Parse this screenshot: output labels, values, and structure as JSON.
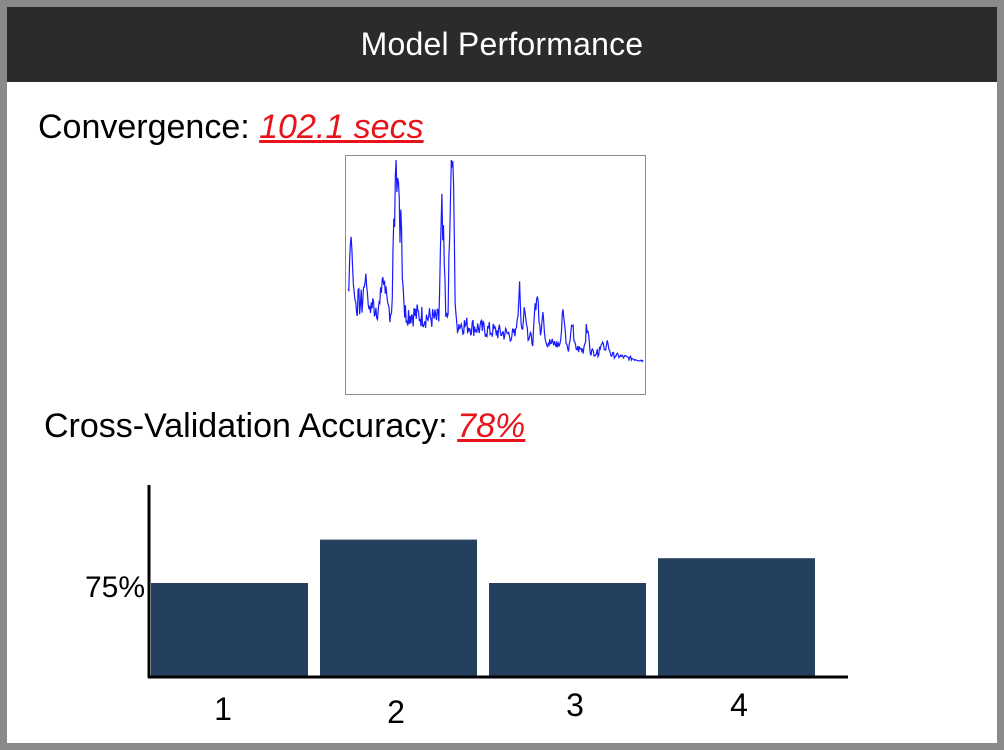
{
  "header": {
    "title": "Model Performance"
  },
  "convergence": {
    "label": "Convergence:",
    "value": "102.1 secs",
    "value_color": "#e8141b",
    "line_color": "#1a1aff"
  },
  "cross_validation": {
    "label": "Cross-Validation Accuracy:",
    "value": "78%",
    "value_color": "#e8141b"
  },
  "chart_data": {
    "type": "bar",
    "categories": [
      "1",
      "2",
      "3",
      "4"
    ],
    "values": [
      75,
      82,
      75,
      79
    ],
    "ylim": [
      60,
      90
    ],
    "ytick_value": 75,
    "ytick_label": "75%",
    "bar_color": "#253f5e",
    "grid": false
  }
}
